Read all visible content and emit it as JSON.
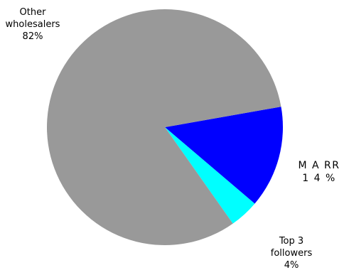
{
  "chart_data": {
    "type": "pie",
    "title": "",
    "slices": [
      {
        "name": "MARR",
        "value": 14,
        "label_name": "M A RR",
        "label_pct": "1 4 %",
        "color": "#0000ff"
      },
      {
        "name": "Top 3 followers",
        "value": 4,
        "label_name": "Top 3 followers",
        "label_line1": "Top 3",
        "label_line2": "followers",
        "label_pct": "4%",
        "color": "#00ffff"
      },
      {
        "name": "Other wholesalers",
        "value": 82,
        "label_name": "Other wholesalers",
        "label_line1": "Other",
        "label_line2": "wholesalers",
        "label_pct": "82%",
        "color": "#999999"
      }
    ],
    "start_angle_deg": 10,
    "direction": "clockwise",
    "legend": "none"
  }
}
